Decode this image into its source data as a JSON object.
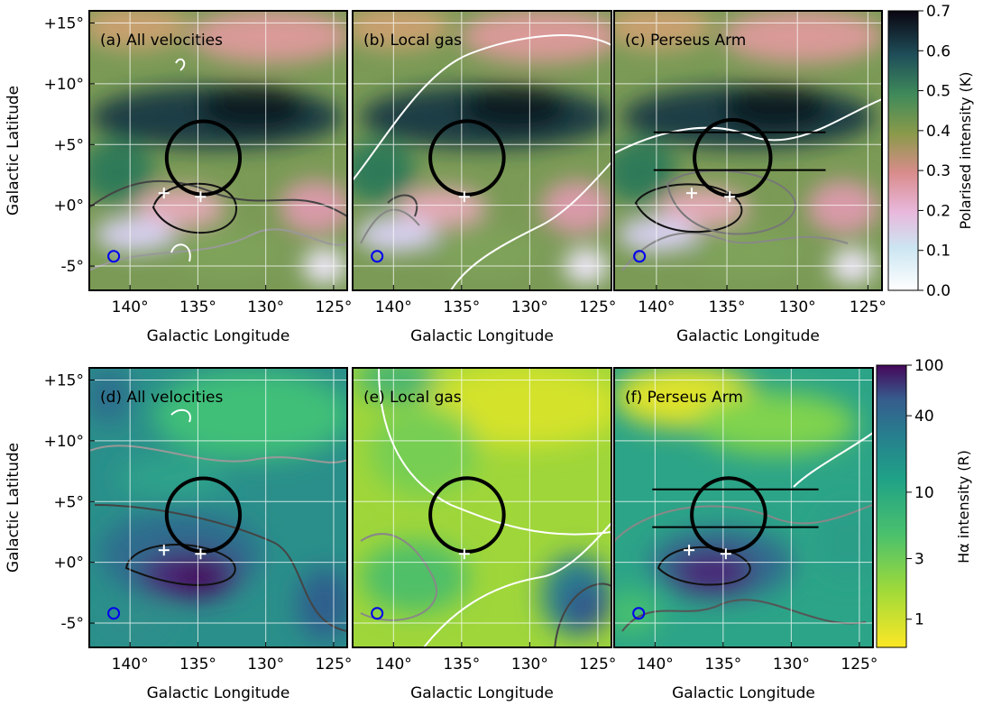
{
  "figure": {
    "row1": {
      "ylabel": "Galactic Latitude",
      "cbar_label": "Polarised intensity (K)"
    },
    "row2": {
      "ylabel": "Galactic Latitude",
      "cbar_label": "Hα intensity (R)"
    }
  },
  "chart_data": [
    {
      "type": "heatmap",
      "title": "(a) All velocities",
      "xlabel": "Galactic Longitude",
      "ylabel": "Galactic Latitude",
      "xlim": [
        143,
        124
      ],
      "ylim": [
        -7,
        16
      ],
      "x_ticks": [
        "140°",
        "135°",
        "130°",
        "125°"
      ],
      "y_ticks": [
        "+15°",
        "+10°",
        "+5°",
        "+0°",
        "-5°"
      ],
      "colormap": "cubehelix",
      "colorbar": {
        "label": "Polarised intensity (K)",
        "ticks": [
          "0.0",
          "0.1",
          "0.2",
          "0.3",
          "0.4",
          "0.5",
          "0.6",
          "0.7"
        ],
        "range": [
          0,
          0.7
        ]
      },
      "markers": [
        [
          137.5,
          1.0
        ],
        [
          134.8,
          0.7
        ]
      ],
      "circle": {
        "center": [
          134.6,
          3.9
        ],
        "radius": 2.7
      },
      "beam": [
        141.2,
        -4.2
      ],
      "lines": []
    },
    {
      "type": "heatmap",
      "title": "(b) Local gas",
      "xlabel": "Galactic Longitude",
      "ylabel": "Galactic Latitude",
      "xlim": [
        143,
        124
      ],
      "ylim": [
        -7,
        16
      ],
      "x_ticks": [
        "140°",
        "135°",
        "130°",
        "125°"
      ],
      "colormap": "cubehelix",
      "colorbar": {
        "label": "Polarised intensity (K)",
        "range": [
          0,
          0.7
        ]
      },
      "markers": [
        [
          134.8,
          0.7
        ]
      ],
      "circle": {
        "center": [
          134.6,
          3.9
        ],
        "radius": 2.7
      },
      "beam": [
        141.2,
        -4.2
      ],
      "lines": []
    },
    {
      "type": "heatmap",
      "title": "(c) Perseus Arm",
      "xlabel": "Galactic Longitude",
      "ylabel": "Galactic Latitude",
      "xlim": [
        143,
        124
      ],
      "ylim": [
        -7,
        16
      ],
      "x_ticks": [
        "140°",
        "135°",
        "130°",
        "125°"
      ],
      "colormap": "cubehelix",
      "colorbar": {
        "label": "Polarised intensity (K)",
        "range": [
          0,
          0.7
        ]
      },
      "markers": [
        [
          137.5,
          1.0
        ],
        [
          134.8,
          0.7
        ]
      ],
      "circle": {
        "center": [
          134.6,
          3.9
        ],
        "radius": 2.7
      },
      "beam": [
        141.2,
        -4.2
      ],
      "lines": [
        {
          "b": 6.0,
          "l": [
            140.2,
            128.0
          ]
        },
        {
          "b": 2.9,
          "l": [
            140.2,
            128.0
          ]
        }
      ]
    },
    {
      "type": "heatmap",
      "title": "(d) All velocities",
      "xlabel": "Galactic Longitude",
      "ylabel": "Galactic Latitude",
      "xlim": [
        143,
        124
      ],
      "ylim": [
        -7,
        16
      ],
      "x_ticks": [
        "140°",
        "135°",
        "130°",
        "125°"
      ],
      "y_ticks": [
        "+15°",
        "+10°",
        "+5°",
        "+0°",
        "-5°"
      ],
      "colormap": "viridis",
      "colorbar": {
        "label": "Hα intensity (R)",
        "ticks": [
          "1",
          "3",
          "10",
          "40",
          "100"
        ],
        "scale": "log"
      },
      "markers": [
        [
          137.5,
          1.0
        ],
        [
          134.8,
          0.7
        ]
      ],
      "circle": {
        "center": [
          134.6,
          3.9
        ],
        "radius": 2.7
      },
      "beam": [
        141.2,
        -4.2
      ],
      "lines": []
    },
    {
      "type": "heatmap",
      "title": "(e) Local gas",
      "xlabel": "Galactic Longitude",
      "ylabel": "Galactic Latitude",
      "xlim": [
        143,
        124
      ],
      "ylim": [
        -7,
        16
      ],
      "x_ticks": [
        "140°",
        "135°",
        "130°",
        "125°"
      ],
      "colormap": "viridis",
      "colorbar": {
        "label": "Hα intensity (R)",
        "scale": "log"
      },
      "markers": [
        [
          134.8,
          0.7
        ]
      ],
      "circle": {
        "center": [
          134.6,
          3.9
        ],
        "radius": 2.7
      },
      "beam": [
        141.2,
        -4.2
      ],
      "lines": []
    },
    {
      "type": "heatmap",
      "title": "(f) Perseus Arm",
      "xlabel": "Galactic Longitude",
      "ylabel": "Galactic Latitude",
      "xlim": [
        143,
        124
      ],
      "ylim": [
        -7,
        16
      ],
      "x_ticks": [
        "140°",
        "135°",
        "130°",
        "125°"
      ],
      "colormap": "viridis",
      "colorbar": {
        "label": "Hα intensity (R)",
        "scale": "log"
      },
      "markers": [
        [
          137.5,
          1.0
        ],
        [
          134.8,
          0.7
        ]
      ],
      "circle": {
        "center": [
          134.6,
          3.9
        ],
        "radius": 2.7
      },
      "beam": [
        141.2,
        -4.2
      ],
      "lines": [
        {
          "b": 6.0,
          "l": [
            140.2,
            128.0
          ]
        },
        {
          "b": 2.9,
          "l": [
            140.2,
            128.0
          ]
        }
      ]
    }
  ]
}
